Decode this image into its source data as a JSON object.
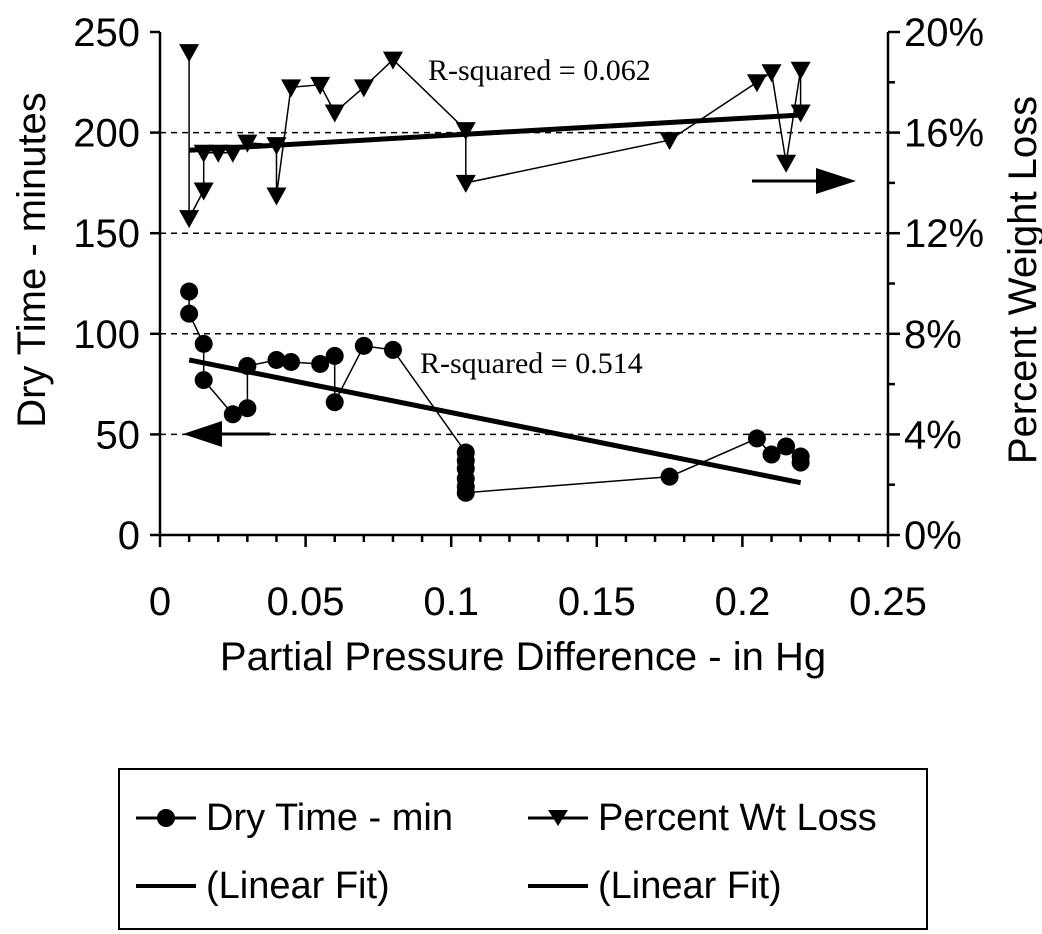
{
  "chart_data": {
    "type": "scatter",
    "xlabel": "Partial Pressure Difference - in Hg",
    "ylabel_left": "Dry Time - minutes",
    "ylabel_right": "Percent Weight Loss",
    "xlim": [
      0,
      0.25
    ],
    "ylim_left": [
      0,
      250
    ],
    "ylim_right": [
      0,
      20
    ],
    "x_ticks": [
      "0",
      "0.05",
      "0.1",
      "0.15",
      "0.2",
      "0.25"
    ],
    "y_left_ticks": [
      "0",
      "50",
      "100",
      "150",
      "200",
      "250"
    ],
    "y_right_ticks": [
      "0%",
      "4%",
      "8%",
      "12%",
      "16%",
      "20%"
    ],
    "grid": "horizontal dashed",
    "series": [
      {
        "name": "Dry Time - min",
        "axis": "left",
        "marker": "circle",
        "x": [
          0.01,
          0.01,
          0.015,
          0.015,
          0.025,
          0.03,
          0.03,
          0.04,
          0.045,
          0.055,
          0.06,
          0.06,
          0.07,
          0.08,
          0.105,
          0.105,
          0.105,
          0.105,
          0.105,
          0.105,
          0.175,
          0.205,
          0.21,
          0.215,
          0.22,
          0.22
        ],
        "values": [
          121,
          110,
          95,
          77,
          60,
          63,
          84,
          87,
          86,
          85,
          89,
          66,
          94,
          92,
          41,
          37,
          33,
          28,
          24,
          21,
          29,
          48,
          40,
          44,
          39,
          36
        ]
      },
      {
        "name": "Percent Wt Loss",
        "axis": "right",
        "marker": "triangle-down",
        "x": [
          0.01,
          0.01,
          0.015,
          0.015,
          0.02,
          0.025,
          0.03,
          0.04,
          0.04,
          0.045,
          0.055,
          0.06,
          0.07,
          0.08,
          0.105,
          0.105,
          0.175,
          0.205,
          0.21,
          0.215,
          0.22,
          0.22
        ],
        "values": [
          19.2,
          12.6,
          13.7,
          15.2,
          15.2,
          15.2,
          15.6,
          15.5,
          13.5,
          17.8,
          17.9,
          16.8,
          17.8,
          18.9,
          16.1,
          14.0,
          15.7,
          18.0,
          18.4,
          14.8,
          18.5,
          16.8
        ]
      }
    ],
    "fits": [
      {
        "name": "(Linear Fit)",
        "for": "Dry Time - min",
        "axis": "left",
        "x": [
          0.01,
          0.22
        ],
        "values": [
          87,
          26
        ]
      },
      {
        "name": "(Linear Fit)",
        "for": "Percent Wt Loss",
        "axis": "right",
        "x": [
          0.01,
          0.22
        ],
        "values": [
          15.3,
          16.7
        ]
      }
    ],
    "annotations": [
      {
        "text": "R-squared = 0.062",
        "near": "Percent Wt Loss fit"
      },
      {
        "text": "R-squared = 0.514",
        "near": "Dry Time fit"
      }
    ],
    "legend": {
      "placement": "bottom",
      "entries": [
        "Dry Time - min",
        "Percent Wt Loss",
        "(Linear Fit)",
        "(Linear Fit)"
      ]
    }
  }
}
